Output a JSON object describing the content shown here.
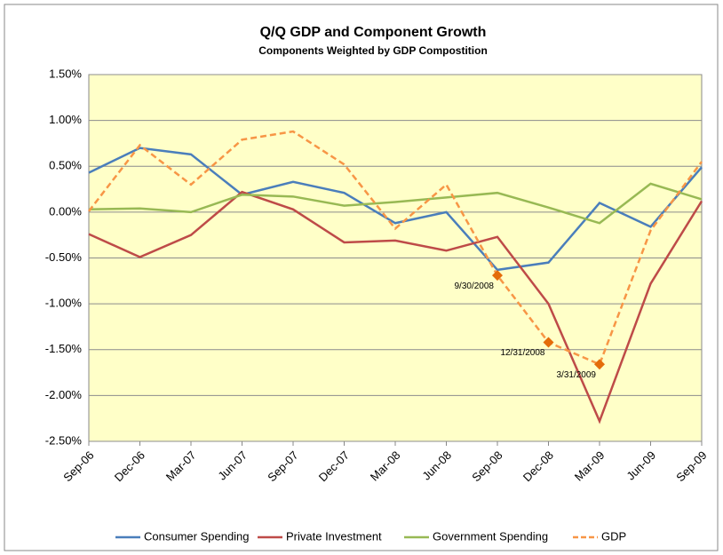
{
  "chart_data": {
    "type": "line",
    "title": "Q/Q GDP and Component Growth",
    "subtitle": "Components Weighted by GDP Compostition",
    "categories": [
      "Sep-06",
      "Dec-06",
      "Mar-07",
      "Jun-07",
      "Sep-07",
      "Dec-07",
      "Mar-08",
      "Jun-08",
      "Sep-08",
      "Dec-08",
      "Mar-09",
      "Jun-09",
      "Sep-09"
    ],
    "series": [
      {
        "name": "Consumer Spending",
        "color": "#4a7ebb",
        "values": [
          0.43,
          0.7,
          0.63,
          0.19,
          0.33,
          0.21,
          -0.12,
          0.0,
          -0.63,
          -0.55,
          0.1,
          -0.16,
          0.49
        ]
      },
      {
        "name": "Private Investment",
        "color": "#be4b48",
        "values": [
          -0.24,
          -0.49,
          -0.25,
          0.22,
          0.03,
          -0.33,
          -0.31,
          -0.42,
          -0.27,
          -1.0,
          -2.28,
          -0.78,
          0.12
        ]
      },
      {
        "name": "Government Spending",
        "color": "#98b954",
        "values": [
          0.03,
          0.04,
          0.0,
          0.19,
          0.17,
          0.07,
          0.11,
          0.16,
          0.21,
          0.05,
          -0.12,
          0.31,
          0.14
        ]
      },
      {
        "name": "GDP",
        "color": "#f79646",
        "dashed": true,
        "values": [
          0.01,
          0.73,
          0.3,
          0.79,
          0.88,
          0.52,
          -0.18,
          0.3,
          -0.69,
          -1.42,
          -1.66,
          -0.2,
          0.55
        ]
      }
    ],
    "annotations": [
      {
        "text": "9/30/2008",
        "series": "GDP",
        "category": "Sep-08"
      },
      {
        "text": "12/31/2008",
        "series": "GDP",
        "category": "Dec-08"
      },
      {
        "text": "3/31/2009",
        "series": "GDP",
        "category": "Mar-09"
      }
    ],
    "ylim": [
      -2.5,
      1.5
    ],
    "yticks": [
      {
        "value": -2.5,
        "label": "-2.50%"
      },
      {
        "value": -2,
        "label": "-2.00%"
      },
      {
        "value": -1.5,
        "label": "-1.50%"
      },
      {
        "value": -1,
        "label": "-1.00%"
      },
      {
        "value": -0.5,
        "label": "-0.50%"
      },
      {
        "value": 0,
        "label": "0.00%"
      },
      {
        "value": 0.5,
        "label": "0.50%"
      },
      {
        "value": 1,
        "label": "1.00%"
      },
      {
        "value": 1.5,
        "label": "1.50%"
      }
    ],
    "grid": true,
    "legend": "bottom",
    "plot_background": "#ffffc8"
  }
}
